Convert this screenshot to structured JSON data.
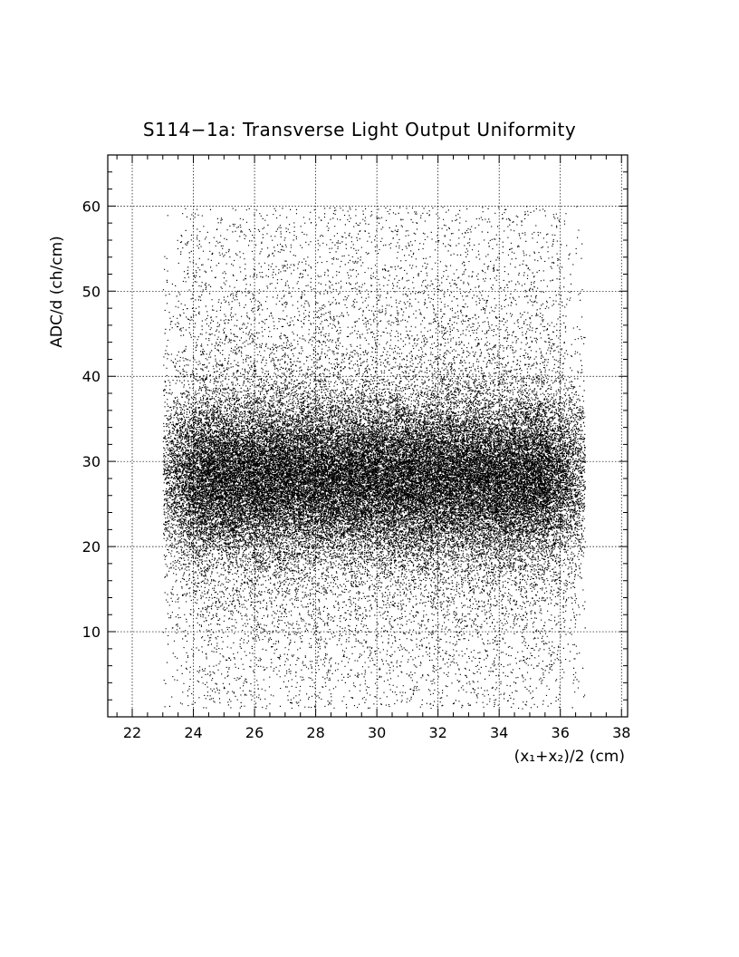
{
  "chart_data": {
    "type": "scatter",
    "title": "S114−1a: Transverse Light Output Uniformity",
    "xlabel": "(x₁+x₂)/2 (cm)",
    "ylabel": "ADC/d (ch/cm)",
    "xlim": [
      21.2,
      38.2
    ],
    "ylim": [
      0,
      66
    ],
    "x_ticks": [
      "22",
      "24",
      "26",
      "28",
      "30",
      "32",
      "34",
      "36",
      "38"
    ],
    "y_ticks": [
      "10",
      "20",
      "30",
      "40",
      "50",
      "60"
    ],
    "grid": true,
    "marker_color": "#000000",
    "distribution": {
      "x_range": [
        23.0,
        36.8
      ],
      "y_range": [
        1,
        60
      ],
      "dense_core": {
        "x_range": [
          24.5,
          35.0
        ],
        "y_range": [
          22,
          35
        ],
        "center_y": 28
      },
      "approx_points": 60000
    }
  }
}
